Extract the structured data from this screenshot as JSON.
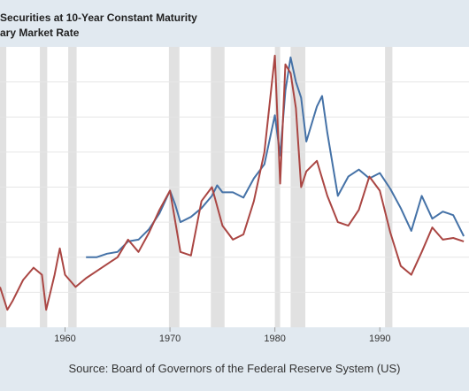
{
  "chart_data": {
    "type": "line",
    "title_lines": [
      "Securities at 10-Year Constant Maturity",
      "ary Market Rate"
    ],
    "xlabel": "",
    "ylabel": "",
    "x_ticks": [
      1960,
      1970,
      1980,
      1990
    ],
    "xlim": [
      1953.8,
      1998.5
    ],
    "ylim": [
      0,
      16
    ],
    "grid": true,
    "source": "Source: Board of Governors of the Federal Reserve System (US)",
    "recessions": [
      [
        1953.6,
        1954.4
      ],
      [
        1957.6,
        1958.3
      ],
      [
        1960.3,
        1961.1
      ],
      [
        1969.9,
        1970.9
      ],
      [
        1973.9,
        1975.2
      ],
      [
        1980.0,
        1980.5
      ],
      [
        1981.5,
        1982.9
      ],
      [
        1990.5,
        1991.2
      ]
    ],
    "series": [
      {
        "color": "#4572a7",
        "points": [
          [
            1962.0,
            4.0
          ],
          [
            1963.0,
            4.0
          ],
          [
            1964.0,
            4.2
          ],
          [
            1965.0,
            4.3
          ],
          [
            1966.0,
            4.9
          ],
          [
            1967.0,
            5.0
          ],
          [
            1968.0,
            5.6
          ],
          [
            1969.0,
            6.5
          ],
          [
            1970.0,
            7.8
          ],
          [
            1970.5,
            7.0
          ],
          [
            1971.0,
            6.0
          ],
          [
            1972.0,
            6.3
          ],
          [
            1973.0,
            6.8
          ],
          [
            1974.0,
            7.5
          ],
          [
            1974.5,
            8.1
          ],
          [
            1975.0,
            7.7
          ],
          [
            1976.0,
            7.7
          ],
          [
            1977.0,
            7.4
          ],
          [
            1978.0,
            8.5
          ],
          [
            1979.0,
            9.3
          ],
          [
            1980.0,
            12.1
          ],
          [
            1980.5,
            9.8
          ],
          [
            1981.0,
            13.5
          ],
          [
            1981.5,
            15.4
          ],
          [
            1982.0,
            14.0
          ],
          [
            1982.5,
            13.1
          ],
          [
            1983.0,
            10.6
          ],
          [
            1984.0,
            12.6
          ],
          [
            1984.5,
            13.2
          ],
          [
            1985.0,
            11.1
          ],
          [
            1986.0,
            7.5
          ],
          [
            1987.0,
            8.6
          ],
          [
            1988.0,
            9.0
          ],
          [
            1989.0,
            8.5
          ],
          [
            1990.0,
            8.8
          ],
          [
            1991.0,
            7.9
          ],
          [
            1992.0,
            6.8
          ],
          [
            1993.0,
            5.5
          ],
          [
            1994.0,
            7.5
          ],
          [
            1995.0,
            6.2
          ],
          [
            1996.0,
            6.6
          ],
          [
            1997.0,
            6.4
          ],
          [
            1998.0,
            5.2
          ]
        ]
      },
      {
        "color": "#aa4643",
        "points": [
          [
            1953.8,
            2.3
          ],
          [
            1954.5,
            1.0
          ],
          [
            1955.0,
            1.5
          ],
          [
            1956.0,
            2.7
          ],
          [
            1957.0,
            3.4
          ],
          [
            1957.8,
            3.0
          ],
          [
            1958.2,
            1.0
          ],
          [
            1959.0,
            3.0
          ],
          [
            1959.5,
            4.5
          ],
          [
            1960.0,
            3.0
          ],
          [
            1961.0,
            2.3
          ],
          [
            1962.0,
            2.8
          ],
          [
            1963.0,
            3.2
          ],
          [
            1964.0,
            3.6
          ],
          [
            1965.0,
            4.0
          ],
          [
            1966.0,
            5.0
          ],
          [
            1967.0,
            4.3
          ],
          [
            1968.0,
            5.4
          ],
          [
            1969.0,
            6.7
          ],
          [
            1970.0,
            7.8
          ],
          [
            1971.0,
            4.3
          ],
          [
            1972.0,
            4.1
          ],
          [
            1973.0,
            7.2
          ],
          [
            1974.0,
            8.0
          ],
          [
            1975.0,
            5.8
          ],
          [
            1976.0,
            5.0
          ],
          [
            1977.0,
            5.3
          ],
          [
            1978.0,
            7.2
          ],
          [
            1979.0,
            10.0
          ],
          [
            1980.0,
            15.5
          ],
          [
            1980.5,
            8.2
          ],
          [
            1981.0,
            15.0
          ],
          [
            1981.5,
            14.5
          ],
          [
            1982.0,
            12.5
          ],
          [
            1982.5,
            8.0
          ],
          [
            1983.0,
            8.9
          ],
          [
            1984.0,
            9.5
          ],
          [
            1985.0,
            7.5
          ],
          [
            1986.0,
            6.0
          ],
          [
            1987.0,
            5.8
          ],
          [
            1988.0,
            6.7
          ],
          [
            1989.0,
            8.6
          ],
          [
            1990.0,
            7.8
          ],
          [
            1991.0,
            5.4
          ],
          [
            1992.0,
            3.5
          ],
          [
            1993.0,
            3.0
          ],
          [
            1994.0,
            4.3
          ],
          [
            1995.0,
            5.7
          ],
          [
            1996.0,
            5.0
          ],
          [
            1997.0,
            5.1
          ],
          [
            1998.0,
            4.9
          ]
        ]
      }
    ]
  }
}
